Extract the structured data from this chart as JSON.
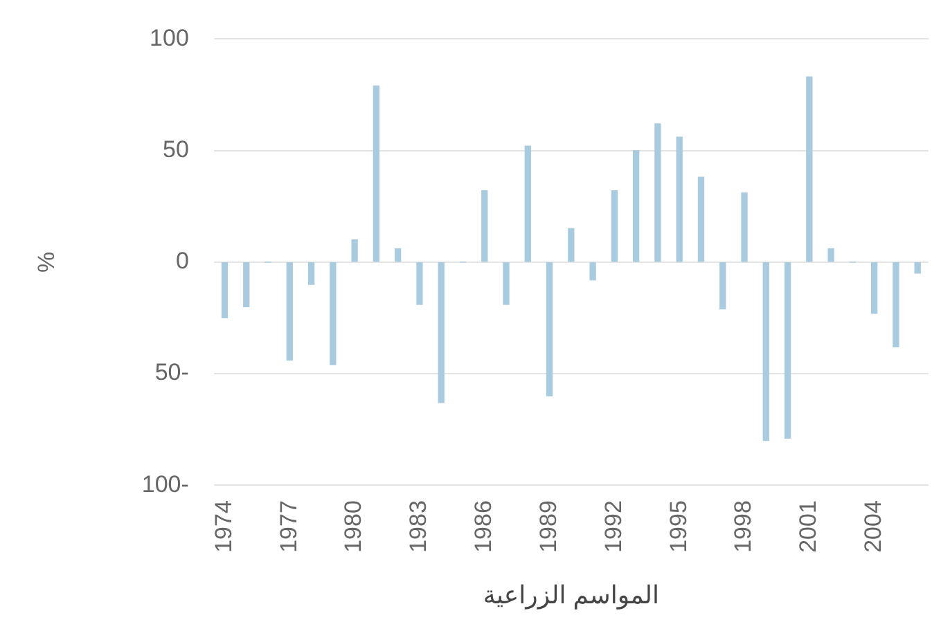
{
  "chart_data": {
    "type": "bar",
    "xlabel": "المواسم الزراعية",
    "ylabel": "%",
    "categories": [
      "1974",
      null,
      null,
      "1977",
      null,
      null,
      "1980",
      null,
      null,
      "1983",
      null,
      null,
      "1986",
      null,
      null,
      "1989",
      null,
      null,
      "1992",
      null,
      null,
      "1995",
      null,
      null,
      "1998",
      null,
      null,
      "2001",
      null,
      null,
      "2004",
      null,
      null
    ],
    "values": [
      -25,
      -20,
      0,
      -44,
      -10,
      -46,
      10,
      79,
      6,
      -19,
      -63,
      0,
      32,
      -19,
      52,
      -60,
      15,
      -8,
      32,
      50,
      62,
      56,
      38,
      -21,
      31,
      -80,
      -79,
      83,
      6,
      0,
      -23,
      -38,
      -5
    ],
    "color": "#a9cbe0",
    "ylim": [
      -100,
      100
    ],
    "yticks": [
      {
        "value": -100,
        "label": "100-"
      },
      {
        "value": -50,
        "label": "50-"
      },
      0,
      50,
      100
    ],
    "grid": "y",
    "legend": false
  }
}
